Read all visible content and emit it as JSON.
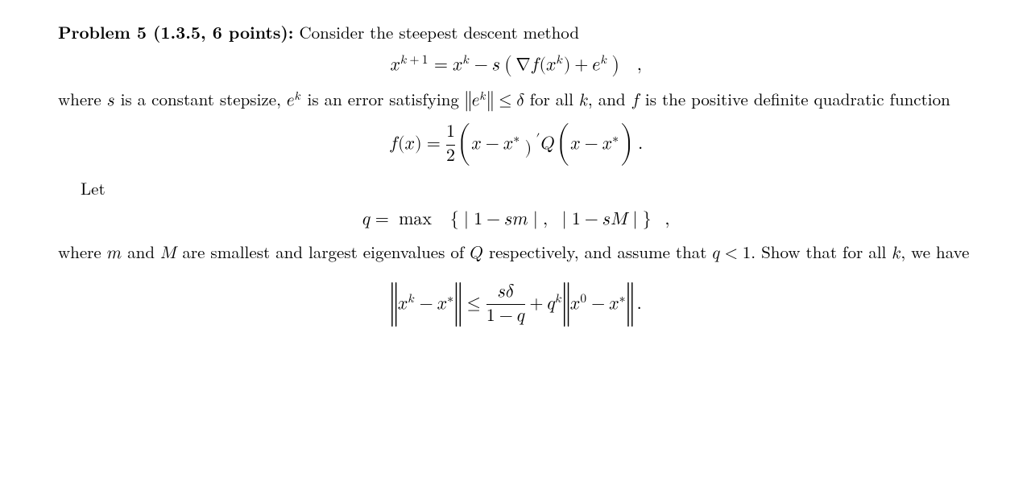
{
  "colors": {
    "text": "#000000",
    "background": "#ffffff"
  },
  "typography": {
    "body_pt": 16,
    "math_pt": 16,
    "font_family": "Computer Modern / Latin Modern"
  },
  "heading": "Problem 5 (1.3.5, 6 points):",
  "p1_tail": " Consider the steepest descent method",
  "eq1": "x^{k+1} = x^{k} - s\\left(\\nabla f(x^{k}) + e^{k}\\right),",
  "p2_a": "where ",
  "p2_b": " is a constant stepsize, ",
  "p2_c": " is an error satisfying ",
  "p2_d": " for all ",
  "p2_e": ", and ",
  "p2_f": " is the positive definite quadratic function",
  "eq2": "f(x) = \\tfrac{1}{2}(x - x^{*})' Q (x - x^{*}).",
  "p3": "Let",
  "eq3": "q = \\max\\{|1 - sm|,\\ |1 - sM|\\},",
  "p4_a": "where ",
  "p4_b": " and ",
  "p4_c": " are smallest and largest eigenvalues of ",
  "p4_d": " respectively, and assume that ",
  "p4_e": ". Show that for all ",
  "p4_f": ", we have",
  "eq4": "\\|x^{k} - x^{*}\\| \\le \\dfrac{s\\delta}{1-q} + q^{k}\\|x^{0} - x^{*}\\|.",
  "inline": {
    "s": "s",
    "ek": "e^{k}",
    "ek_bound": "\\|e^{k}\\| \\le \\delta",
    "k": "k",
    "f": "f",
    "m": "m",
    "M": "M",
    "Q": "Q",
    "qlt1": "q < 1"
  }
}
